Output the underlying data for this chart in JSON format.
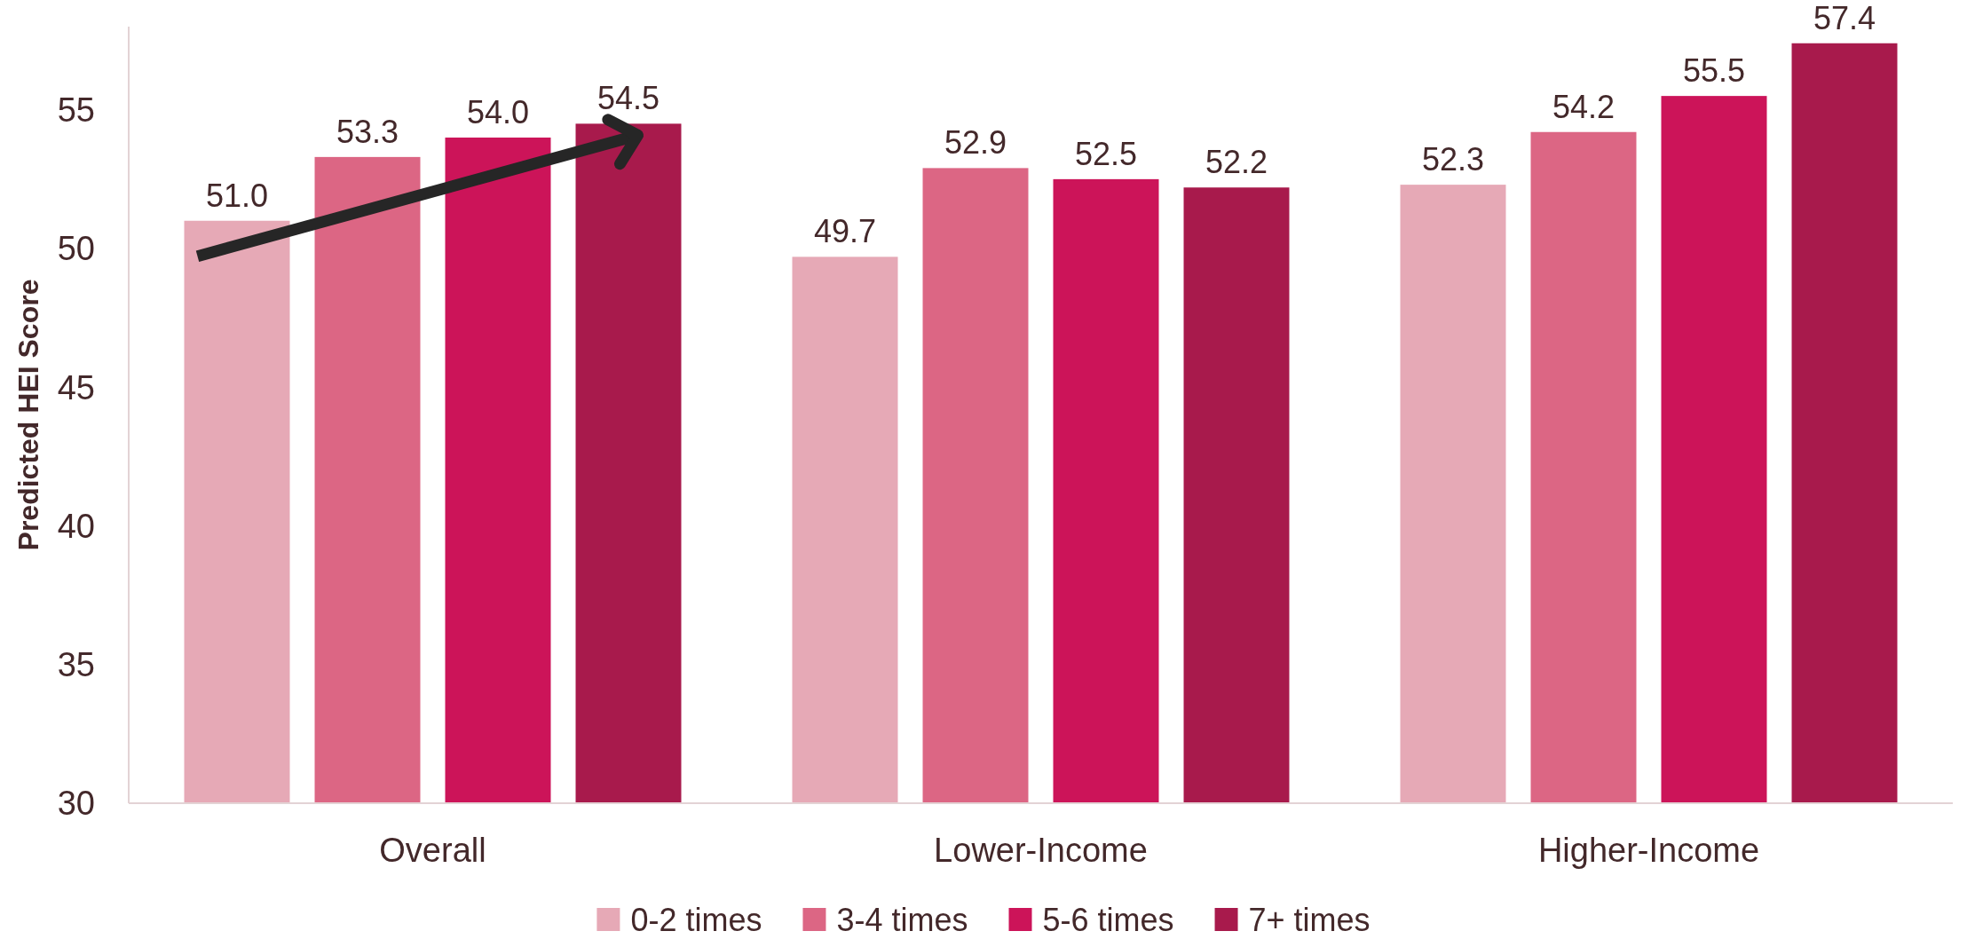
{
  "chart_data": {
    "type": "bar",
    "ylabel": "Predicted HEI Score",
    "categories": [
      "Overall",
      "Lower-Income",
      "Higher-Income"
    ],
    "series": [
      {
        "name": "0-2 times",
        "color": "#e6a9b6",
        "values": [
          51.0,
          49.7,
          52.3
        ],
        "value_labels": [
          "51.0",
          "49.7",
          "52.3"
        ]
      },
      {
        "name": "3-4 times",
        "color": "#dc6684",
        "values": [
          53.3,
          52.9,
          54.2
        ],
        "value_labels": [
          "53.3",
          "52.9",
          "54.2"
        ]
      },
      {
        "name": "5-6 times",
        "color": "#cc1459",
        "values": [
          54.0,
          52.5,
          55.5
        ],
        "value_labels": [
          "54.0",
          "52.5",
          "55.5"
        ]
      },
      {
        "name": "7+ times",
        "color": "#a81a4c",
        "values": [
          54.5,
          52.2,
          57.4
        ],
        "value_labels": [
          "54.5",
          "52.2",
          "57.4"
        ]
      }
    ],
    "ylim": [
      30,
      58
    ],
    "yticks": [
      30,
      35,
      40,
      45,
      50,
      55
    ],
    "legend": "bottom"
  }
}
